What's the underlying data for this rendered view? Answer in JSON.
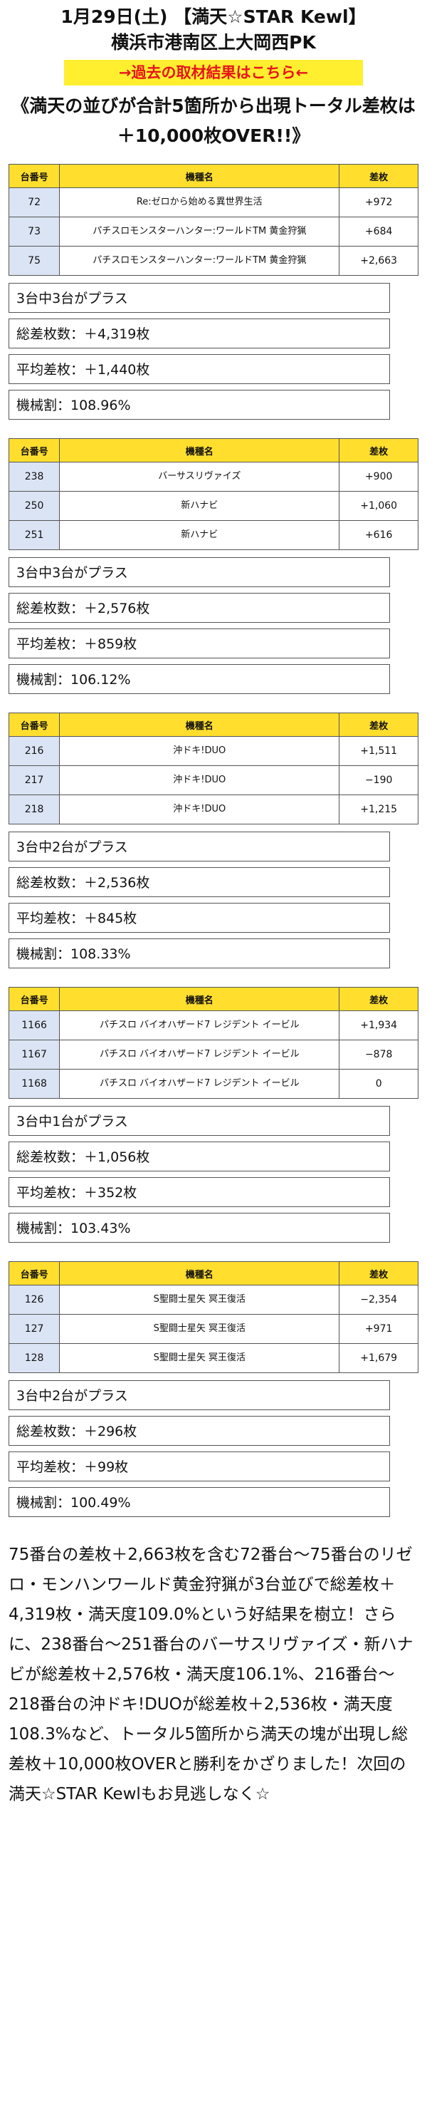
{
  "header": {
    "title_line1": "1月29日(土) 【満天☆STAR Kewl】",
    "title_line2": "横浜市港南区上大岡西PK",
    "link_label": "→過去の取材結果はこちら←",
    "headline": "《満天の並びが合計5箇所から出現トータル差枚は＋10,000枚OVER!!》"
  },
  "table_headers": [
    "台番号",
    "機種名",
    "差枚"
  ],
  "groups": [
    {
      "rows": [
        {
          "no": "72",
          "model": "Re:ゼロから始める異世界生活",
          "diff": "+972"
        },
        {
          "no": "73",
          "model": "パチスロモンスターハンター:ワールドTM 黄金狩猟",
          "diff": "+684"
        },
        {
          "no": "75",
          "model": "パチスロモンスターハンター:ワールドTM 黄金狩猟",
          "diff": "+2,663"
        }
      ],
      "summary": "3台中3台がプラス",
      "total": "総差枚数：＋4,319枚",
      "average": "平均差枚：＋1,440枚",
      "payout": "機械割：108.96%"
    },
    {
      "rows": [
        {
          "no": "238",
          "model": "バーサスリヴァイズ",
          "diff": "+900"
        },
        {
          "no": "250",
          "model": "新ハナビ",
          "diff": "+1,060"
        },
        {
          "no": "251",
          "model": "新ハナビ",
          "diff": "+616"
        }
      ],
      "summary": "3台中3台がプラス",
      "total": "総差枚数：＋2,576枚",
      "average": "平均差枚：＋859枚",
      "payout": "機械割：106.12%"
    },
    {
      "rows": [
        {
          "no": "216",
          "model": "沖ドキ!DUO",
          "diff": "+1,511"
        },
        {
          "no": "217",
          "model": "沖ドキ!DUO",
          "diff": "−190"
        },
        {
          "no": "218",
          "model": "沖ドキ!DUO",
          "diff": "+1,215"
        }
      ],
      "summary": "3台中2台がプラス",
      "total": "総差枚数：＋2,536枚",
      "average": "平均差枚：＋845枚",
      "payout": "機械割：108.33%"
    },
    {
      "rows": [
        {
          "no": "1166",
          "model": "パチスロ バイオハザード7 レジデント イービル",
          "diff": "+1,934"
        },
        {
          "no": "1167",
          "model": "パチスロ バイオハザード7 レジデント イービル",
          "diff": "−878"
        },
        {
          "no": "1168",
          "model": "パチスロ バイオハザード7 レジデント イービル",
          "diff": "0"
        }
      ],
      "summary": "3台中1台がプラス",
      "total": "総差枚数：＋1,056枚",
      "average": "平均差枚：＋352枚",
      "payout": "機械割：103.43%"
    },
    {
      "rows": [
        {
          "no": "126",
          "model": "S聖闘士星矢 冥王復活",
          "diff": "−2,354"
        },
        {
          "no": "127",
          "model": "S聖闘士星矢 冥王復活",
          "diff": "+971"
        },
        {
          "no": "128",
          "model": "S聖闘士星矢 冥王復活",
          "diff": "+1,679"
        }
      ],
      "summary": "3台中2台がプラス",
      "total": "総差枚数：＋296枚",
      "average": "平均差枚：＋99枚",
      "payout": "機械割：100.49%"
    }
  ],
  "footer": "75番台の差枚＋2,663枚を含む72番台〜75番台のリゼロ・モンハンワールド黄金狩猟が3台並びで総差枚＋4,319枚・満天度109.0%という好結果を樹立！さらに、238番台〜251番台のバーサスリヴァイズ・新ハナビが総差枚＋2,576枚・満天度106.1%、216番台〜218番台の沖ドキ!DUOが総差枚＋2,536枚・満天度108.3%など、トータル5箇所から満天の塊が出現し総差枚＋10,000枚OVERと勝利をかざりました！次回の満天☆STAR Kewlもお見逃しなく☆",
  "colors": {
    "table_header_bg": "#ffde2e",
    "number_cell_bg": "#dbe4f4",
    "link_bg": "#ffef2e",
    "link_text": "#e8141a"
  }
}
